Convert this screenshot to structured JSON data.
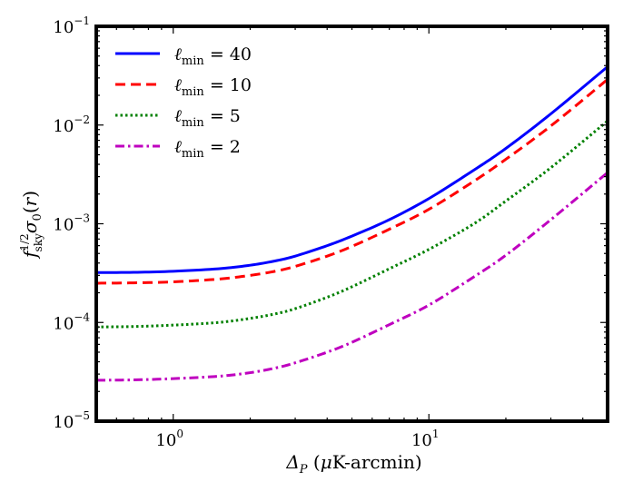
{
  "chart_data": {
    "type": "line",
    "title": "",
    "xlabel": "Δ_P (μK-arcmin)",
    "ylabel": "f_sky^{1/2} σ_0(r)",
    "xscale": "log",
    "yscale": "log",
    "xlim": [
      0.5,
      50
    ],
    "ylim": [
      1e-05,
      0.1
    ],
    "x_ticks": [
      {
        "value": 1,
        "base": "10",
        "exp": "0"
      },
      {
        "value": 10,
        "base": "10",
        "exp": "1"
      }
    ],
    "y_ticks": [
      {
        "value": 1e-05,
        "base": "10",
        "exp": "−5"
      },
      {
        "value": 0.0001,
        "base": "10",
        "exp": "−4"
      },
      {
        "value": 0.001,
        "base": "10",
        "exp": "−3"
      },
      {
        "value": 0.01,
        "base": "10",
        "exp": "−2"
      },
      {
        "value": 0.1,
        "base": "10",
        "exp": "−1"
      }
    ],
    "legend_position": "top-left",
    "series": [
      {
        "name": "ℓmin = 40",
        "label_sym": "ℓ",
        "label_sub": "min",
        "label_rest": " = 40",
        "color": "#0000ff",
        "style": "solid",
        "x": [
          0.5,
          0.7,
          1.0,
          1.5,
          2.0,
          2.5,
          3.0,
          4.0,
          5.0,
          7.0,
          10.0,
          15.0,
          20.0,
          30.0,
          50.0
        ],
        "y": [
          0.00032,
          0.000322,
          0.00033,
          0.00035,
          0.00038,
          0.00042,
          0.00047,
          0.0006,
          0.00075,
          0.0011,
          0.0018,
          0.0035,
          0.0058,
          0.013,
          0.039
        ]
      },
      {
        "name": "ℓmin = 10",
        "label_sym": "ℓ",
        "label_sub": "min",
        "label_rest": " = 10",
        "color": "#ff0000",
        "style": "dashed",
        "x": [
          0.5,
          0.7,
          1.0,
          1.5,
          2.0,
          2.5,
          3.0,
          4.0,
          5.0,
          7.0,
          10.0,
          15.0,
          20.0,
          30.0,
          50.0
        ],
        "y": [
          0.00025,
          0.000252,
          0.000258,
          0.000275,
          0.0003,
          0.00033,
          0.00037,
          0.00047,
          0.00059,
          0.00088,
          0.0014,
          0.0027,
          0.0045,
          0.0098,
          0.029
        ]
      },
      {
        "name": "ℓmin = 5",
        "label_sym": "ℓ",
        "label_sub": "min",
        "label_rest": " = 5",
        "color": "#008000",
        "style": "dotted",
        "x": [
          0.5,
          0.7,
          1.0,
          1.5,
          2.0,
          2.5,
          3.0,
          4.0,
          5.0,
          7.0,
          10.0,
          15.0,
          20.0,
          30.0,
          50.0
        ],
        "y": [
          9e-05,
          9.1e-05,
          9.4e-05,
          0.0001,
          0.00011,
          0.000122,
          0.000138,
          0.00018,
          0.00023,
          0.00035,
          0.00055,
          0.001,
          0.0017,
          0.0037,
          0.011
        ]
      },
      {
        "name": "ℓmin = 2",
        "label_sym": "ℓ",
        "label_sub": "min",
        "label_rest": " = 2",
        "color": "#bf00bf",
        "style": "dashdot",
        "x": [
          0.5,
          0.7,
          1.0,
          1.5,
          2.0,
          2.5,
          3.0,
          4.0,
          5.0,
          7.0,
          10.0,
          15.0,
          20.0,
          30.0,
          50.0
        ],
        "y": [
          2.6e-05,
          2.62e-05,
          2.7e-05,
          2.85e-05,
          3.1e-05,
          3.45e-05,
          3.9e-05,
          5e-05,
          6.3e-05,
          9.5e-05,
          0.00015,
          0.00029,
          0.00048,
          0.0011,
          0.0033
        ]
      }
    ]
  }
}
